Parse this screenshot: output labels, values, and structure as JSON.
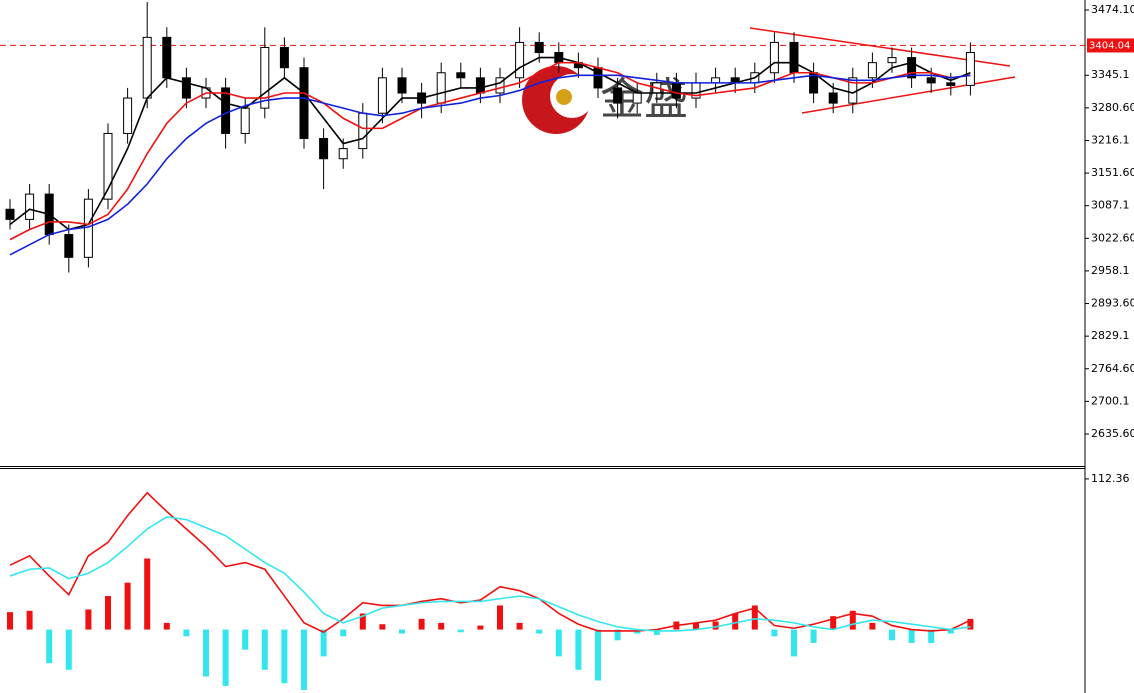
{
  "chart_data": [
    {
      "type": "candlestick",
      "watermark": "金盛",
      "open": [
        3080,
        3060,
        3110,
        3030,
        2985,
        3100,
        3230,
        3300,
        3420,
        3340,
        3300,
        3320,
        3230,
        3280,
        3400,
        3360,
        3220,
        3180,
        3200,
        3270,
        3340,
        3310,
        3290,
        3350,
        3340,
        3310,
        3340,
        3410,
        3390,
        3370,
        3360,
        3320,
        3290,
        3310,
        3330,
        3300,
        3330,
        3340,
        3330,
        3350,
        3410,
        3350,
        3310,
        3290,
        3340,
        3370,
        3380,
        3340,
        3330,
        3325
      ],
      "high": [
        3100,
        3130,
        3130,
        3050,
        3120,
        3250,
        3320,
        3490,
        3440,
        3360,
        3340,
        3340,
        3300,
        3440,
        3420,
        3380,
        3240,
        3220,
        3290,
        3360,
        3360,
        3330,
        3370,
        3370,
        3360,
        3360,
        3440,
        3430,
        3410,
        3390,
        3380,
        3340,
        3330,
        3350,
        3350,
        3350,
        3360,
        3360,
        3370,
        3430,
        3430,
        3370,
        3330,
        3360,
        3390,
        3400,
        3400,
        3360,
        3350,
        3410
      ],
      "low": [
        3040,
        3040,
        3010,
        2955,
        2965,
        3080,
        3210,
        3280,
        3320,
        3280,
        3280,
        3200,
        3210,
        3260,
        3340,
        3200,
        3120,
        3160,
        3180,
        3250,
        3290,
        3260,
        3270,
        3320,
        3290,
        3290,
        3320,
        3370,
        3350,
        3340,
        3300,
        3260,
        3270,
        3290,
        3280,
        3280,
        3310,
        3310,
        3310,
        3330,
        3330,
        3290,
        3270,
        3270,
        3320,
        3350,
        3320,
        3310,
        3305,
        3305
      ],
      "close": [
        3060,
        3110,
        3030,
        2985,
        3100,
        3230,
        3300,
        3420,
        3340,
        3300,
        3320,
        3230,
        3280,
        3400,
        3360,
        3220,
        3180,
        3200,
        3270,
        3340,
        3310,
        3290,
        3350,
        3340,
        3310,
        3340,
        3410,
        3390,
        3370,
        3360,
        3320,
        3290,
        3310,
        3330,
        3300,
        3330,
        3340,
        3330,
        3350,
        3410,
        3350,
        3310,
        3290,
        3340,
        3370,
        3380,
        3340,
        3330,
        3325,
        3390
      ],
      "series": [
        {
          "color": "#000000",
          "values": [
            3050,
            3080,
            3070,
            3040,
            3050,
            3120,
            3200,
            3300,
            3340,
            3330,
            3320,
            3290,
            3280,
            3310,
            3340,
            3310,
            3260,
            3210,
            3220,
            3260,
            3300,
            3300,
            3310,
            3320,
            3320,
            3330,
            3360,
            3380,
            3380,
            3370,
            3350,
            3330,
            3310,
            3310,
            3310,
            3310,
            3320,
            3330,
            3340,
            3370,
            3370,
            3350,
            3320,
            3310,
            3330,
            3360,
            3370,
            3350,
            3335,
            3350
          ]
        },
        {
          "color": "#ee1111",
          "values": [
            3020,
            3040,
            3055,
            3055,
            3050,
            3070,
            3120,
            3190,
            3250,
            3290,
            3310,
            3310,
            3300,
            3300,
            3310,
            3310,
            3290,
            3260,
            3240,
            3240,
            3260,
            3280,
            3290,
            3300,
            3310,
            3320,
            3330,
            3350,
            3370,
            3370,
            3360,
            3350,
            3330,
            3320,
            3310,
            3305,
            3310,
            3315,
            3320,
            3335,
            3350,
            3350,
            3340,
            3330,
            3330,
            3340,
            3350,
            3350,
            3340,
            3345
          ]
        },
        {
          "color": "#1122dd",
          "values": [
            2990,
            3010,
            3030,
            3040,
            3045,
            3060,
            3090,
            3130,
            3180,
            3220,
            3250,
            3270,
            3285,
            3295,
            3300,
            3300,
            3290,
            3280,
            3270,
            3265,
            3270,
            3280,
            3285,
            3290,
            3300,
            3305,
            3315,
            3330,
            3340,
            3345,
            3345,
            3345,
            3340,
            3335,
            3330,
            3330,
            3330,
            3330,
            3330,
            3335,
            3340,
            3345,
            3340,
            3335,
            3335,
            3340,
            3345,
            3345,
            3340,
            3345
          ]
        }
      ],
      "last_price": 3404.04,
      "ylim": [
        2572.3,
        3493.9
      ],
      "yticks": [
        {
          "value": 3474.1,
          "label": "3474.10"
        },
        3345.1,
        {
          "value": 3280.6,
          "label": "3280.60"
        },
        3216.1,
        {
          "value": 3151.6,
          "label": "3151.60"
        },
        3087.1,
        {
          "value": 3022.6,
          "label": "3022.60"
        },
        2958.1,
        {
          "value": 2893.6,
          "label": "2893.60"
        },
        2829.1,
        {
          "value": 2764.6,
          "label": "2764.60"
        },
        2700.1,
        {
          "value": 2635.6,
          "label": "2635.60"
        }
      ]
    },
    {
      "type": "macd",
      "values": [
        13,
        14,
        -25,
        -30,
        15,
        25,
        35,
        53,
        5,
        -5,
        -35,
        -42,
        -15,
        -30,
        -40,
        -45,
        -20,
        -5,
        12,
        4,
        -3,
        8,
        5,
        -2,
        3,
        18,
        5,
        -3,
        -20,
        -30,
        -38,
        -8,
        -3,
        -4,
        6,
        5,
        6,
        12,
        18,
        -5,
        -20,
        -10,
        10,
        14,
        5,
        -8,
        -10,
        -10,
        -3,
        8
      ],
      "color_up": "#ee1111",
      "color_down": "#33e6ee",
      "series": [
        {
          "color": "#ee1111",
          "values": [
            48,
            55,
            40,
            26,
            55,
            65,
            85,
            102,
            88,
            75,
            62,
            47,
            50,
            45,
            25,
            5,
            -2,
            8,
            20,
            18,
            18,
            21,
            23,
            20,
            22,
            32,
            29,
            23,
            12,
            4,
            -1,
            -1,
            -1,
            0,
            3,
            5,
            7,
            12,
            16,
            3,
            1,
            4,
            8,
            12,
            10,
            3,
            0,
            -1,
            0,
            7
          ]
        },
        {
          "color": "#33e6ee",
          "values": [
            40,
            45,
            46,
            38,
            42,
            50,
            62,
            75,
            84,
            82,
            76,
            70,
            60,
            50,
            42,
            28,
            12,
            5,
            10,
            16,
            18,
            20,
            21,
            21,
            21,
            23,
            25,
            23,
            17,
            11,
            6,
            2,
            0,
            -1,
            -1,
            0,
            2,
            5,
            8,
            7,
            5,
            2,
            0,
            4,
            7,
            6,
            4,
            2,
            0,
            2
          ]
        }
      ],
      "ylim": [
        -47.3,
        119.75
      ],
      "yticks": [
        112.36
      ]
    }
  ]
}
